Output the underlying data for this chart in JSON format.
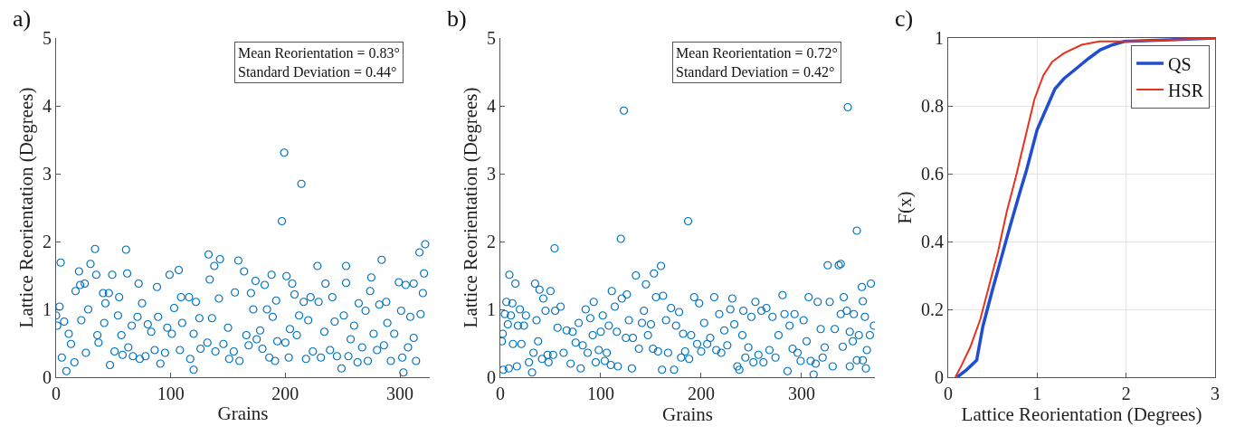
{
  "chart_data": [
    {
      "type": "scatter",
      "title": "a)",
      "xlabel": "Grains",
      "ylabel": "Lattice Reorientation (Degrees)",
      "annotations": [
        "Mean Reorientation = 0.83°",
        "Standard Deviation = 0.44°"
      ],
      "marker": "circle",
      "grid": false,
      "xlim": [
        0,
        326
      ],
      "xticks": [
        0,
        100,
        200,
        300
      ],
      "ylim": [
        0,
        5
      ],
      "yticks": [
        0,
        1,
        2,
        3,
        4,
        5
      ],
      "series": [
        {
          "color": "#0072bd",
          "x": [
            0,
            3,
            1,
            4,
            7,
            5,
            9,
            11,
            13,
            17,
            16,
            20,
            21,
            22,
            25,
            26,
            30,
            34,
            35,
            28,
            36,
            37,
            41,
            43,
            42,
            46,
            47,
            49,
            51,
            54,
            55,
            57,
            58,
            61,
            62,
            63,
            66,
            67,
            71,
            72,
            73,
            75,
            78,
            80,
            83,
            86,
            88,
            89,
            91,
            95,
            97,
            99,
            101,
            103,
            107,
            108,
            110,
            109,
            116,
            117,
            120,
            120,
            122,
            125,
            126,
            132,
            133,
            134,
            136,
            138,
            139,
            142,
            143,
            146,
            150,
            151,
            155,
            156,
            159,
            160,
            164,
            166,
            168,
            170,
            172,
            174,
            175,
            178,
            180,
            182,
            184,
            186,
            188,
            189,
            191,
            192,
            193,
            197,
            199,
            200,
            201,
            203,
            204,
            206,
            208,
            210,
            212,
            214,
            216,
            218,
            220,
            222,
            224,
            228,
            229,
            231,
            234,
            235,
            239,
            241,
            243,
            245,
            249,
            251,
            253,
            253,
            255,
            257,
            260,
            263,
            264,
            267,
            270,
            272,
            274,
            275,
            277,
            280,
            282,
            284,
            286,
            288,
            289,
            292,
            295,
            299,
            301,
            302,
            303,
            305,
            307,
            309,
            312,
            312,
            314,
            317,
            318,
            320,
            321,
            322
          ],
          "values": [
            0.91,
            1.04,
            0.76,
            1.69,
            0.82,
            0.29,
            0.09,
            0.64,
            0.49,
            1.27,
            0.22,
            1.56,
            1.36,
            0.84,
            1.38,
            0.36,
            1.67,
            1.89,
            1.51,
            1.0,
            0.62,
            0.51,
            1.24,
            1.09,
            0.8,
            1.24,
            0.18,
            1.51,
            0.38,
            0.91,
            1.18,
            0.62,
            0.33,
            1.88,
            1.53,
            0.44,
            0.76,
            0.31,
            0.89,
            1.38,
            0.27,
            1.09,
            0.31,
            0.78,
            0.67,
            0.4,
            1.33,
            0.89,
            0.2,
            0.36,
            0.73,
            1.51,
            0.64,
            1.02,
            1.58,
            0.4,
            0.8,
            1.18,
            1.18,
            0.27,
            0.11,
            0.64,
            1.11,
            0.87,
            0.42,
            0.51,
            1.81,
            1.44,
            0.87,
            1.64,
            0.38,
            1.16,
            1.74,
            0.49,
            0.73,
            0.27,
            0.38,
            1.25,
            1.72,
            0.24,
            1.56,
            0.62,
            0.47,
            1.24,
            1.0,
            1.42,
            0.56,
            0.69,
            0.42,
            1.36,
            1.0,
            0.29,
            1.51,
            0.89,
            0.24,
            1.13,
            0.53,
            2.3,
            3.31,
            0.51,
            1.49,
            0.29,
            0.71,
            1.38,
            1.22,
            0.62,
            0.91,
            2.85,
            1.11,
            0.27,
            0.84,
            1.18,
            0.38,
            1.64,
            1.11,
            0.29,
            0.67,
            1.38,
            0.4,
            1.18,
            0.82,
            0.31,
            0.13,
            0.91,
            1.64,
            1.39,
            0.31,
            0.56,
            0.76,
            0.22,
            1.09,
            0.44,
            0.98,
            0.24,
            1.27,
            1.47,
            0.64,
            0.4,
            1.07,
            1.73,
            0.47,
            1.11,
            0.8,
            0.24,
            0.64,
            1.4,
            0.98,
            0.29,
            0.07,
            1.36,
            0.44,
            0.89,
            1.38,
            0.58,
            0.24,
            1.84,
            0.93,
            1.24,
            1.53,
            1.96
          ]
        }
      ]
    },
    {
      "type": "scatter",
      "title": "b)",
      "xlabel": "Grains",
      "ylabel": "Lattice Reorientation (Degrees)",
      "annotations": [
        "Mean Reorientation = 0.72°",
        "Standard Deviation = 0.42°"
      ],
      "marker": "circle",
      "grid": false,
      "xlim": [
        0,
        373
      ],
      "xticks": [
        0,
        100,
        200,
        300
      ],
      "ylim": [
        0,
        5
      ],
      "yticks": [
        0,
        1,
        2,
        3,
        4,
        5
      ],
      "series": [
        {
          "color": "#0072bd",
          "x": [
            1.5,
            3,
            2.4,
            4.5,
            6,
            7.5,
            8.4,
            9,
            10.5,
            12,
            12.6,
            15,
            16.5,
            17.5,
            19.5,
            21,
            23.5,
            25.5,
            28.5,
            31.6,
            33,
            34.6,
            36,
            37.6,
            39,
            41.5,
            42.8,
            45,
            47,
            48,
            50,
            52.6,
            54,
            54.6,
            57,
            60,
            63,
            66,
            70,
            72,
            75,
            78,
            80,
            82,
            85,
            87,
            89.6,
            92,
            93,
            95,
            98,
            100,
            102,
            104,
            106,
            108,
            110,
            111,
            114,
            116,
            117,
            120,
            121,
            123,
            125,
            126,
            128,
            131,
            132,
            135,
            138,
            141,
            143,
            145,
            147,
            150,
            152,
            153,
            155,
            157,
            160,
            161,
            162,
            165,
            167,
            170,
            173,
            175,
            178,
            180,
            182,
            184,
            187,
            188,
            190,
            193,
            196,
            198,
            200,
            203,
            206,
            209,
            213,
            215,
            218,
            220,
            223,
            226,
            229,
            231,
            233,
            236,
            238,
            241,
            242,
            244,
            247,
            250,
            252,
            254,
            257,
            260,
            262,
            265,
            268,
            271,
            274,
            277,
            281,
            283,
            286,
            288,
            291,
            293,
            296,
            299,
            302,
            305,
            307,
            309,
            312,
            314,
            316,
            319,
            321,
            323,
            326,
            328,
            331,
            333,
            337,
            339,
            339,
            341,
            342,
            345,
            346,
            348,
            348,
            351,
            352,
            355,
            355,
            357,
            360,
            361,
            361,
            363,
            364,
            365,
            368,
            369,
            372
          ],
          "values": [
            0.53,
            0.11,
            0.64,
            0.93,
            1.11,
            0.78,
            0.13,
            1.51,
            0.91,
            1.09,
            0.49,
            1.38,
            0.16,
            0.76,
            1.0,
            0.49,
            0.76,
            0.91,
            0.22,
            0.07,
            0.36,
            1.38,
            0.84,
            0.53,
            1.29,
            0.27,
            1.16,
            0.98,
            0.33,
            0.22,
            1.27,
            0.33,
            1.9,
            0.98,
            0.73,
            1.04,
            0.36,
            0.69,
            0.2,
            0.67,
            0.51,
            0.8,
            0.13,
            0.47,
            1.0,
            0.36,
            0.87,
            0.62,
            1.11,
            0.22,
            0.4,
            0.67,
            0.91,
            0.24,
            0.36,
            0.76,
            0.18,
            1.27,
            1.04,
            0.67,
            0.16,
            2.04,
            1.16,
            3.93,
            0.58,
            1.22,
            0.84,
            0.13,
            0.58,
            1.5,
            0.42,
            0.8,
            0.98,
            1.37,
            0.62,
            0.78,
            0.42,
            1.53,
            1.18,
            0.38,
            1.64,
            0.11,
            1.2,
            0.84,
            0.36,
            1.02,
            0.11,
            0.76,
            0.96,
            0.29,
            0.64,
            0.38,
            2.3,
            0.27,
            0.62,
            1.18,
            0.49,
            1.09,
            0.38,
            0.8,
            0.49,
            0.58,
            1.18,
            0.4,
            0.93,
            0.36,
            0.69,
            0.47,
            1.0,
            1.16,
            0.78,
            0.16,
            0.11,
            0.62,
            0.98,
            0.29,
            0.44,
            0.89,
            0.22,
            1.11,
            0.33,
            0.98,
            0.22,
            1.02,
            0.4,
            0.89,
            0.29,
            0.62,
            1.21,
            0.93,
            0.09,
            0.76,
            0.42,
            0.93,
            0.36,
            0.24,
            0.84,
            0.53,
            1.18,
            0.24,
            0.04,
            0.2,
            1.11,
            0.71,
            0.29,
            0.44,
            1.65,
            1.11,
            0.16,
            0.71,
            1.65,
            0.93,
            1.67,
            0.45,
            1.18,
            0.98,
            3.98,
            0.67,
            0.16,
            0.53,
            0.93,
            2.16,
            0.25,
            0.62,
            1.33,
            1.12,
            0.25,
            0.89,
            0.13,
            0.4,
            0.62,
            1.38,
            0.76
          ]
        }
      ]
    },
    {
      "type": "line",
      "title": "c)",
      "xlabel": "Lattice Reorientation (Degrees)",
      "ylabel": "F(x)",
      "grid": true,
      "legend": "top right",
      "line_style": "solid",
      "xlim": [
        0,
        3
      ],
      "xticks": [
        0,
        1,
        2,
        3
      ],
      "ylim": [
        0,
        1
      ],
      "yticks": [
        0,
        0.2,
        0.4,
        0.6,
        0.8,
        1
      ],
      "series": [
        {
          "name": "QS",
          "color": "#1f4fd0",
          "x": [
            0.1,
            0.2,
            0.26,
            0.32,
            0.39,
            0.49,
            0.59,
            0.69,
            0.8,
            0.88,
            1.0,
            1.1,
            1.2,
            1.3,
            1.44,
            1.58,
            1.71,
            1.85,
            1.98,
            2.5,
            3.0
          ],
          "values": [
            0,
            0.02,
            0.035,
            0.05,
            0.15,
            0.25,
            0.345,
            0.44,
            0.54,
            0.61,
            0.73,
            0.79,
            0.85,
            0.88,
            0.91,
            0.94,
            0.965,
            0.98,
            0.99,
            0.995,
            1.0
          ]
        },
        {
          "name": "HSR",
          "color": "#e8321e",
          "x": [
            0.08,
            0.15,
            0.25,
            0.36,
            0.46,
            0.56,
            0.66,
            0.76,
            0.86,
            0.97,
            1.07,
            1.17,
            1.3,
            1.5,
            1.7,
            2.0,
            2.5,
            3.0
          ],
          "values": [
            0,
            0.035,
            0.09,
            0.17,
            0.27,
            0.37,
            0.49,
            0.59,
            0.7,
            0.82,
            0.89,
            0.93,
            0.955,
            0.98,
            0.99,
            0.99,
            0.995,
            1.0
          ]
        }
      ]
    }
  ]
}
